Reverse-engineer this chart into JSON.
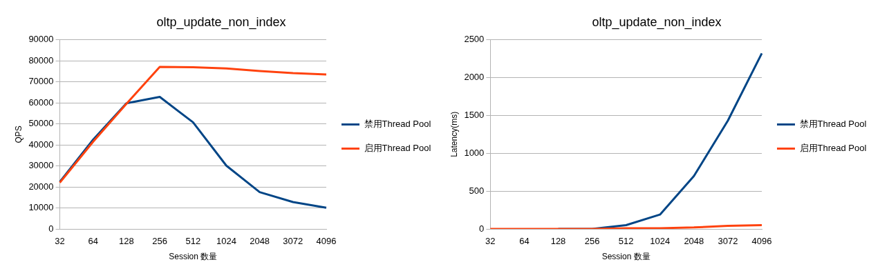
{
  "chart_data": [
    {
      "type": "line",
      "title": "oltp_update_non_index",
      "xlabel": "Session 数量",
      "ylabel": "QPS",
      "categories": [
        "32",
        "64",
        "128",
        "256",
        "512",
        "1024",
        "2048",
        "3072",
        "4096"
      ],
      "series": [
        {
          "name": "禁用Thread Pool",
          "color": "#004586",
          "values": [
            22400,
            42500,
            59800,
            62800,
            50700,
            30100,
            17500,
            12800,
            10100
          ]
        },
        {
          "name": "启用Thread Pool",
          "color": "#ff420e",
          "values": [
            22000,
            41500,
            59500,
            77100,
            76900,
            76300,
            75100,
            74100,
            73500
          ]
        }
      ],
      "ylim": [
        0,
        90000
      ],
      "yticks": [
        0,
        10000,
        20000,
        30000,
        40000,
        50000,
        60000,
        70000,
        80000,
        90000
      ],
      "grid": "y",
      "legend": "right",
      "marker": "none",
      "line_style": "solid"
    },
    {
      "type": "line",
      "title": "oltp_update_non_index",
      "xlabel": "Session 数量",
      "ylabel": "Latency(ms)",
      "categories": [
        "32",
        "64",
        "128",
        "256",
        "512",
        "1024",
        "2048",
        "3072",
        "4096"
      ],
      "series": [
        {
          "name": "禁用Thread Pool",
          "color": "#004586",
          "values": [
            null,
            null,
            0,
            0,
            50,
            190,
            700,
            1430,
            2320
          ]
        },
        {
          "name": "启用Thread Pool",
          "color": "#ff420e",
          "values": [
            0,
            0,
            0,
            0,
            10,
            10,
            20,
            40,
            50
          ]
        }
      ],
      "ylim": [
        0,
        2500
      ],
      "yticks": [
        0,
        500,
        1000,
        1500,
        2000,
        2500
      ],
      "grid": "y",
      "legend": "right",
      "marker": "none",
      "line_style": "solid"
    }
  ]
}
